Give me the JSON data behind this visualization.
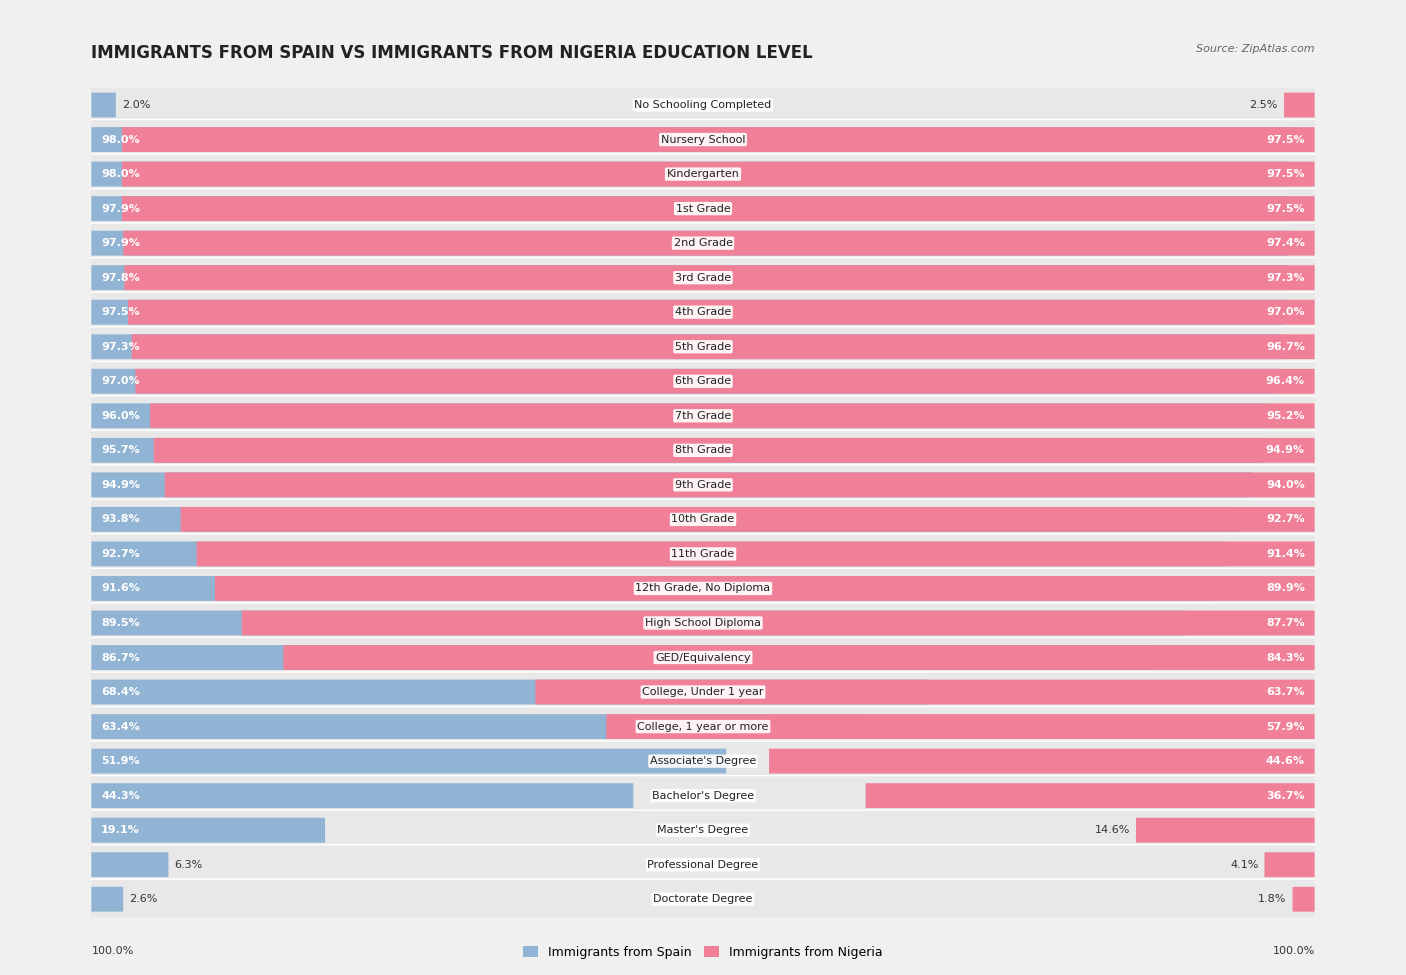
{
  "title": "IMMIGRANTS FROM SPAIN VS IMMIGRANTS FROM NIGERIA EDUCATION LEVEL",
  "source": "Source: ZipAtlas.com",
  "categories": [
    "No Schooling Completed",
    "Nursery School",
    "Kindergarten",
    "1st Grade",
    "2nd Grade",
    "3rd Grade",
    "4th Grade",
    "5th Grade",
    "6th Grade",
    "7th Grade",
    "8th Grade",
    "9th Grade",
    "10th Grade",
    "11th Grade",
    "12th Grade, No Diploma",
    "High School Diploma",
    "GED/Equivalency",
    "College, Under 1 year",
    "College, 1 year or more",
    "Associate's Degree",
    "Bachelor's Degree",
    "Master's Degree",
    "Professional Degree",
    "Doctorate Degree"
  ],
  "spain_values": [
    2.0,
    98.0,
    98.0,
    97.9,
    97.9,
    97.8,
    97.5,
    97.3,
    97.0,
    96.0,
    95.7,
    94.9,
    93.8,
    92.7,
    91.6,
    89.5,
    86.7,
    68.4,
    63.4,
    51.9,
    44.3,
    19.1,
    6.3,
    2.6
  ],
  "nigeria_values": [
    2.5,
    97.5,
    97.5,
    97.5,
    97.4,
    97.3,
    97.0,
    96.7,
    96.4,
    95.2,
    94.9,
    94.0,
    92.7,
    91.4,
    89.9,
    87.7,
    84.3,
    63.7,
    57.9,
    44.6,
    36.7,
    14.6,
    4.1,
    1.8
  ],
  "spain_color": "#92b4d4",
  "nigeria_color": "#f08098",
  "background_color": "#f0f0f0",
  "bar_background": "#e0e0e0",
  "row_bg_color": "#e8e8e8",
  "title_fontsize": 12,
  "label_fontsize": 8.0,
  "value_fontsize": 8.0,
  "legend_fontsize": 9,
  "bottom_label": "100.0%"
}
